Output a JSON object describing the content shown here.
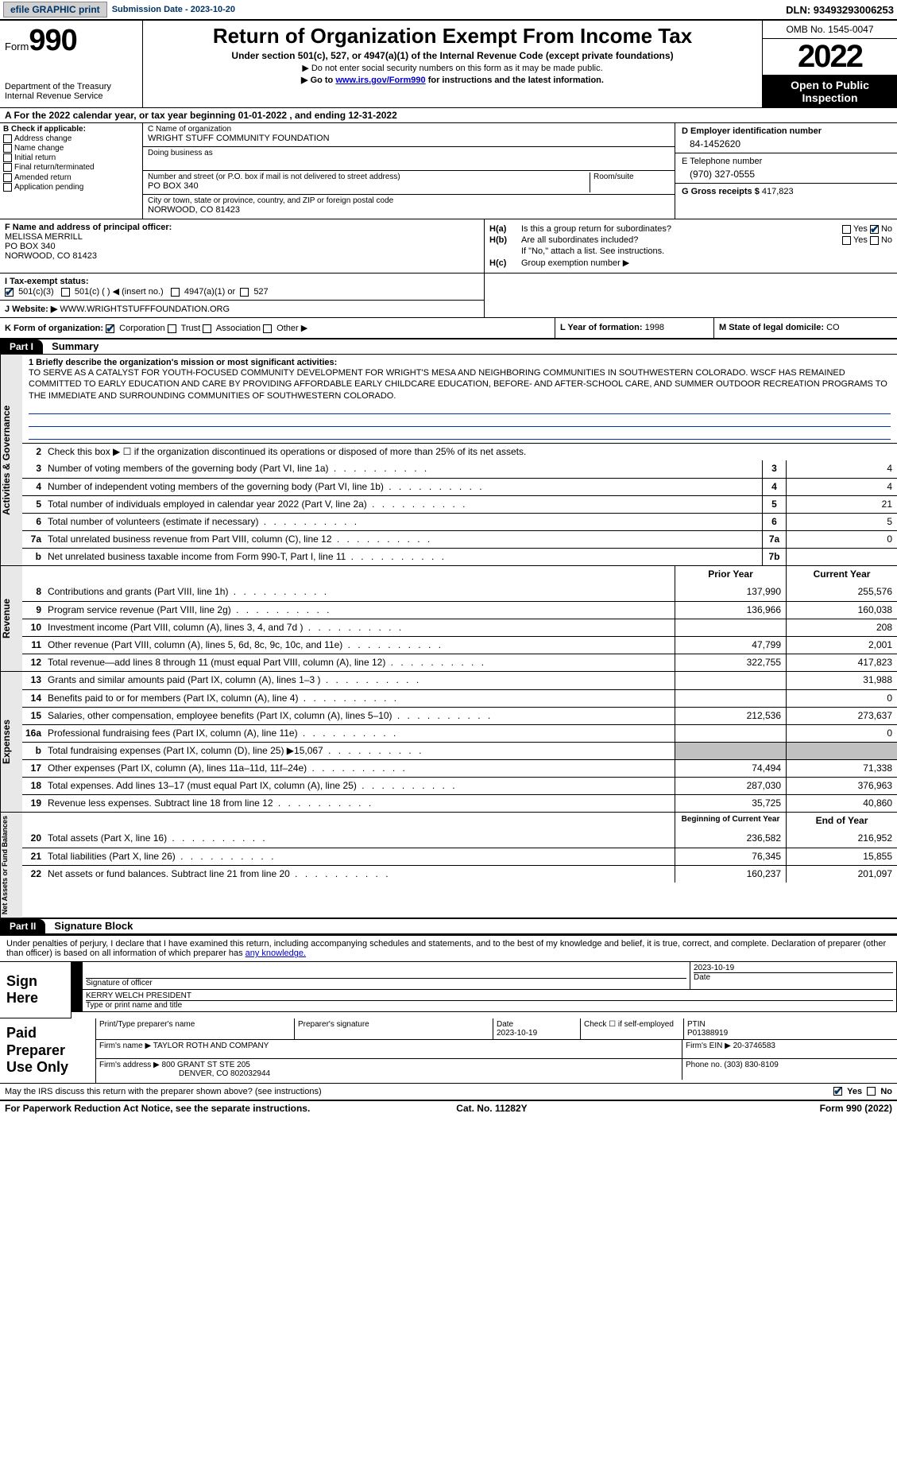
{
  "topbar": {
    "efile": "efile GRAPHIC print",
    "submission": "Submission Date - 2023-10-20",
    "dln": "DLN: 93493293006253"
  },
  "header": {
    "form_label": "Form",
    "form_num": "990",
    "dept": "Department of the Treasury",
    "irs": "Internal Revenue Service",
    "title": "Return of Organization Exempt From Income Tax",
    "sub": "Under section 501(c), 527, or 4947(a)(1) of the Internal Revenue Code (except private foundations)",
    "note1": "▶ Do not enter social security numbers on this form as it may be made public.",
    "note2_pre": "▶ Go to ",
    "note2_link": "www.irs.gov/Form990",
    "note2_post": " for instructions and the latest information.",
    "omb": "OMB No. 1545-0047",
    "year": "2022",
    "open": "Open to Public Inspection"
  },
  "row_a": "A For the 2022 calendar year, or tax year beginning 01-01-2022   , and ending 12-31-2022",
  "col_b": {
    "title": "B Check if applicable:",
    "items": [
      "Address change",
      "Name change",
      "Initial return",
      "Final return/terminated",
      "Amended return",
      "Application pending"
    ]
  },
  "col_c": {
    "lbl_name": "C Name of organization",
    "name": "WRIGHT STUFF COMMUNITY FOUNDATION",
    "lbl_dba": "Doing business as",
    "dba": "",
    "lbl_street": "Number and street (or P.O. box if mail is not delivered to street address)",
    "street": "PO BOX 340",
    "lbl_room": "Room/suite",
    "lbl_city": "City or town, state or province, country, and ZIP or foreign postal code",
    "city": "NORWOOD, CO  81423"
  },
  "col_d": {
    "lbl_ein": "D Employer identification number",
    "ein": "84-1452620",
    "lbl_phone": "E Telephone number",
    "phone": "(970) 327-0555",
    "lbl_gross": "G Gross receipts $",
    "gross": "417,823"
  },
  "col_f": {
    "lbl": "F  Name and address of principal officer:",
    "name": "MELISSA MERRILL",
    "street": "PO BOX 340",
    "city": "NORWOOD, CO  81423"
  },
  "col_h": {
    "ha_lbl": "H(a)",
    "ha_txt": "Is this a group return for subordinates?",
    "hb_lbl": "H(b)",
    "hb_txt": "Are all subordinates included?",
    "hb_note": "If \"No,\" attach a list. See instructions.",
    "hc_lbl": "H(c)",
    "hc_txt": "Group exemption number ▶",
    "yes": "Yes",
    "no": "No"
  },
  "row_i": {
    "lbl": "I  Tax-exempt status:",
    "o1": "501(c)(3)",
    "o2": "501(c) (  ) ◀ (insert no.)",
    "o3": "4947(a)(1) or",
    "o4": "527"
  },
  "row_j": {
    "lbl": "J  Website: ▶",
    "val": "WWW.WRIGHTSTUFFFOUNDATION.ORG"
  },
  "row_k": {
    "lbl": "K Form of organization:",
    "o1": "Corporation",
    "o2": "Trust",
    "o3": "Association",
    "o4": "Other ▶"
  },
  "row_l": {
    "lbl": "L Year of formation:",
    "val": "1998"
  },
  "row_m": {
    "lbl": "M State of legal domicile:",
    "val": "CO"
  },
  "part1": {
    "hdr": "Part I",
    "title": "Summary"
  },
  "summary": {
    "q1_lbl": "1  Briefly describe the organization's mission or most significant activities:",
    "q1_val": "TO SERVE AS A CATALYST FOR YOUTH-FOCUSED COMMUNITY DEVELOPMENT FOR WRIGHT'S MESA AND NEIGHBORING COMMUNITIES IN SOUTHWESTERN COLORADO. WSCF HAS REMAINED COMMITTED TO EARLY EDUCATION AND CARE BY PROVIDING AFFORDABLE EARLY CHILDCARE EDUCATION, BEFORE- AND AFTER-SCHOOL CARE, AND SUMMER OUTDOOR RECREATION PROGRAMS TO THE IMMEDIATE AND SURROUNDING COMMUNITIES OF SOUTHWESTERN COLORADO.",
    "q2": "Check this box ▶ ☐  if the organization discontinued its operations or disposed of more than 25% of its net assets."
  },
  "lines_gov": [
    {
      "n": "3",
      "lbl": "Number of voting members of the governing body (Part VI, line 1a)",
      "c": "3",
      "v": "4"
    },
    {
      "n": "4",
      "lbl": "Number of independent voting members of the governing body (Part VI, line 1b)",
      "c": "4",
      "v": "4"
    },
    {
      "n": "5",
      "lbl": "Total number of individuals employed in calendar year 2022 (Part V, line 2a)",
      "c": "5",
      "v": "21"
    },
    {
      "n": "6",
      "lbl": "Total number of volunteers (estimate if necessary)",
      "c": "6",
      "v": "5"
    },
    {
      "n": "7a",
      "lbl": "Total unrelated business revenue from Part VIII, column (C), line 12",
      "c": "7a",
      "v": "0"
    },
    {
      "n": "b",
      "lbl": "Net unrelated business taxable income from Form 990-T, Part I, line 11",
      "c": "7b",
      "v": ""
    }
  ],
  "col_headers": {
    "prior": "Prior Year",
    "current": "Current Year"
  },
  "lines_rev": [
    {
      "n": "8",
      "lbl": "Contributions and grants (Part VIII, line 1h)",
      "p": "137,990",
      "c": "255,576"
    },
    {
      "n": "9",
      "lbl": "Program service revenue (Part VIII, line 2g)",
      "p": "136,966",
      "c": "160,038"
    },
    {
      "n": "10",
      "lbl": "Investment income (Part VIII, column (A), lines 3, 4, and 7d )",
      "p": "",
      "c": "208"
    },
    {
      "n": "11",
      "lbl": "Other revenue (Part VIII, column (A), lines 5, 6d, 8c, 9c, 10c, and 11e)",
      "p": "47,799",
      "c": "2,001"
    },
    {
      "n": "12",
      "lbl": "Total revenue—add lines 8 through 11 (must equal Part VIII, column (A), line 12)",
      "p": "322,755",
      "c": "417,823"
    }
  ],
  "lines_exp": [
    {
      "n": "13",
      "lbl": "Grants and similar amounts paid (Part IX, column (A), lines 1–3 )",
      "p": "",
      "c": "31,988"
    },
    {
      "n": "14",
      "lbl": "Benefits paid to or for members (Part IX, column (A), line 4)",
      "p": "",
      "c": "0"
    },
    {
      "n": "15",
      "lbl": "Salaries, other compensation, employee benefits (Part IX, column (A), lines 5–10)",
      "p": "212,536",
      "c": "273,637"
    },
    {
      "n": "16a",
      "lbl": "Professional fundraising fees (Part IX, column (A), line 11e)",
      "p": "",
      "c": "0"
    },
    {
      "n": "b",
      "lbl": "Total fundraising expenses (Part IX, column (D), line 25) ▶15,067",
      "p": "grey",
      "c": "grey"
    },
    {
      "n": "17",
      "lbl": "Other expenses (Part IX, column (A), lines 11a–11d, 11f–24e)",
      "p": "74,494",
      "c": "71,338"
    },
    {
      "n": "18",
      "lbl": "Total expenses. Add lines 13–17 (must equal Part IX, column (A), line 25)",
      "p": "287,030",
      "c": "376,963"
    },
    {
      "n": "19",
      "lbl": "Revenue less expenses. Subtract line 18 from line 12",
      "p": "35,725",
      "c": "40,860"
    }
  ],
  "col_headers2": {
    "prior": "Beginning of Current Year",
    "current": "End of Year"
  },
  "lines_net": [
    {
      "n": "20",
      "lbl": "Total assets (Part X, line 16)",
      "p": "236,582",
      "c": "216,952"
    },
    {
      "n": "21",
      "lbl": "Total liabilities (Part X, line 26)",
      "p": "76,345",
      "c": "15,855"
    },
    {
      "n": "22",
      "lbl": "Net assets or fund balances. Subtract line 21 from line 20",
      "p": "160,237",
      "c": "201,097"
    }
  ],
  "vtabs": {
    "gov": "Activities & Governance",
    "rev": "Revenue",
    "exp": "Expenses",
    "net": "Net Assets or Fund Balances"
  },
  "part2": {
    "hdr": "Part II",
    "title": "Signature Block"
  },
  "sig": {
    "text_pre": "Under penalties of perjury, I declare that I have examined this return, including accompanying schedules and statements, and to the best of my knowledge and belief, it is true, correct, and complete. Declaration of preparer (other than officer) is based on all information of which preparer has ",
    "text_link": "any knowledge.",
    "sign_here": "Sign Here",
    "sig_of_officer": "Signature of officer",
    "date": "Date",
    "date_val": "2023-10-19",
    "officer": "KERRY WELCH PRESIDENT",
    "type_name": "Type or print name and title"
  },
  "prep": {
    "title": "Paid Preparer Use Only",
    "h1": "Print/Type preparer's name",
    "h2": "Preparer's signature",
    "h3": "Date",
    "h3v": "2023-10-19",
    "h4": "Check ☐ if self-employed",
    "h5": "PTIN",
    "h5v": "P01388919",
    "firm_lbl": "Firm's name    ▶",
    "firm": "TAYLOR ROTH AND COMPANY",
    "ein_lbl": "Firm's EIN ▶",
    "ein": "20-3746583",
    "addr_lbl": "Firm's address ▶",
    "addr1": "800 GRANT ST STE 205",
    "addr2": "DENVER, CO  802032944",
    "phone_lbl": "Phone no.",
    "phone": "(303) 830-8109"
  },
  "footer": {
    "discuss": "May the IRS discuss this return with the preparer shown above? (see instructions)",
    "yes": "Yes",
    "no": "No",
    "paperwork": "For Paperwork Reduction Act Notice, see the separate instructions.",
    "cat": "Cat. No. 11282Y",
    "form": "Form 990 (2022)"
  }
}
